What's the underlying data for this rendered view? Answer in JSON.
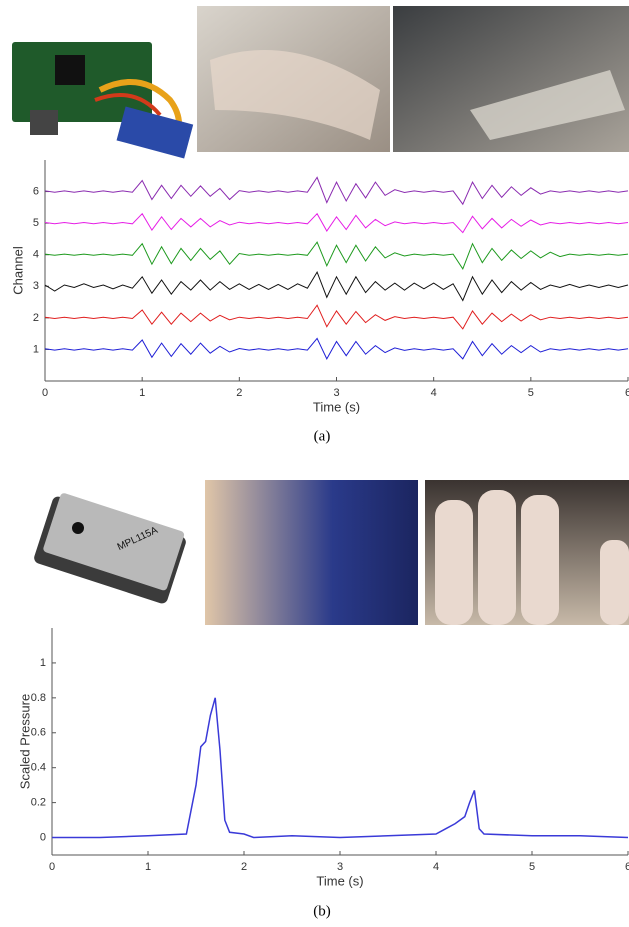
{
  "chart_data": [
    {
      "type": "line",
      "x_label": "Time (s)",
      "y_label": "Channel",
      "x": [
        0,
        0.1,
        0.2,
        0.3,
        0.4,
        0.5,
        0.6,
        0.7,
        0.8,
        0.9,
        1,
        1.1,
        1.2,
        1.3,
        1.4,
        1.5,
        1.6,
        1.7,
        1.8,
        1.9,
        2,
        2.1,
        2.2,
        2.3,
        2.4,
        2.5,
        2.6,
        2.7,
        2.8,
        2.9,
        3,
        3.1,
        3.2,
        3.3,
        3.4,
        3.5,
        3.6,
        3.7,
        3.8,
        3.9,
        4,
        4.1,
        4.2,
        4.3,
        4.4,
        4.5,
        4.6,
        4.7,
        4.8,
        4.9,
        5,
        5.1,
        5.2,
        5.3,
        5.4,
        5.5,
        5.6,
        5.7,
        5.8,
        5.9,
        6
      ],
      "series": [
        {
          "color": "#1f1fd6",
          "values": [
            0.02,
            0.02,
            0.02,
            0.02,
            0.02,
            0.02,
            0.02,
            0.02,
            0.02,
            0.02,
            0.3,
            0.25,
            0.2,
            0.22,
            0.18,
            0.15,
            0.2,
            0.12,
            0.1,
            0.08,
            0.03,
            0.02,
            0.02,
            0.02,
            0.02,
            0.02,
            0.02,
            0.02,
            0.35,
            0.3,
            0.25,
            0.2,
            0.25,
            0.15,
            0.12,
            0.1,
            0.05,
            0.03,
            0.02,
            0.02,
            0.02,
            0.02,
            0.02,
            0.3,
            0.25,
            0.2,
            0.18,
            0.15,
            0.12,
            0.1,
            0.12,
            0.08,
            0.02,
            0.02,
            0.02,
            0.02,
            0.02,
            0.02,
            0.02,
            0.02,
            0.02
          ]
        },
        {
          "color": "#e01e1e",
          "values": [
            0.02,
            0.02,
            0.02,
            0.02,
            0.02,
            0.02,
            0.02,
            0.02,
            0.02,
            0.02,
            0.25,
            0.2,
            0.18,
            0.2,
            0.15,
            0.12,
            0.15,
            0.1,
            0.08,
            0.06,
            0.02,
            0.02,
            0.02,
            0.02,
            0.02,
            0.02,
            0.02,
            0.02,
            0.4,
            0.28,
            0.22,
            0.2,
            0.2,
            0.15,
            0.1,
            0.08,
            0.04,
            0.02,
            0.02,
            0.02,
            0.02,
            0.02,
            0.02,
            0.35,
            0.22,
            0.2,
            0.15,
            0.12,
            0.12,
            0.1,
            0.1,
            0.06,
            0.02,
            0.02,
            0.02,
            0.02,
            0.02,
            0.02,
            0.02,
            0.02,
            0.02
          ]
        },
        {
          "color": "#111111",
          "values": [
            0.04,
            0.15,
            0.04,
            0.04,
            0.08,
            0.04,
            0.04,
            0.08,
            0.04,
            0.06,
            0.3,
            0.22,
            0.2,
            0.25,
            0.15,
            0.12,
            0.2,
            0.12,
            0.15,
            0.1,
            0.08,
            0.1,
            0.06,
            0.1,
            0.06,
            0.1,
            0.08,
            0.06,
            0.45,
            0.35,
            0.3,
            0.25,
            0.3,
            0.2,
            0.15,
            0.12,
            0.1,
            0.12,
            0.1,
            0.08,
            0.1,
            0.1,
            0.08,
            0.45,
            0.3,
            0.25,
            0.2,
            0.2,
            0.15,
            0.12,
            0.12,
            0.1,
            0.04,
            0.04,
            0.06,
            0.04,
            0.04,
            0.04,
            0.04,
            0.04,
            0.04
          ]
        },
        {
          "color": "#1e9a1e",
          "values": [
            0.02,
            0.02,
            0.02,
            0.02,
            0.02,
            0.02,
            0.02,
            0.02,
            0.02,
            0.02,
            0.35,
            0.3,
            0.25,
            0.28,
            0.2,
            0.18,
            0.2,
            0.15,
            0.12,
            0.3,
            0.04,
            0.02,
            0.02,
            0.02,
            0.02,
            0.02,
            0.02,
            0.02,
            0.4,
            0.35,
            0.3,
            0.25,
            0.3,
            0.2,
            0.25,
            0.1,
            0.06,
            0.04,
            0.02,
            0.02,
            0.02,
            0.02,
            0.02,
            0.45,
            0.35,
            0.25,
            0.2,
            0.18,
            0.15,
            0.12,
            0.12,
            0.1,
            0.08,
            0.06,
            0.02,
            0.02,
            0.02,
            0.02,
            0.02,
            0.02,
            0.02
          ]
        },
        {
          "color": "#e61ee6",
          "values": [
            0.02,
            0.02,
            0.02,
            0.02,
            0.02,
            0.02,
            0.02,
            0.02,
            0.02,
            0.02,
            0.3,
            0.22,
            0.2,
            0.2,
            0.15,
            0.12,
            0.15,
            0.12,
            0.08,
            0.06,
            0.03,
            0.02,
            0.02,
            0.02,
            0.02,
            0.02,
            0.02,
            0.02,
            0.3,
            0.25,
            0.2,
            0.2,
            0.25,
            0.15,
            0.12,
            0.08,
            0.04,
            0.02,
            0.02,
            0.02,
            0.02,
            0.02,
            0.02,
            0.3,
            0.22,
            0.18,
            0.15,
            0.15,
            0.12,
            0.1,
            0.1,
            0.06,
            0.02,
            0.02,
            0.02,
            0.02,
            0.02,
            0.02,
            0.02,
            0.02,
            0.02
          ]
        },
        {
          "color": "#8a2bb0",
          "values": [
            0.02,
            0.02,
            0.02,
            0.02,
            0.02,
            0.02,
            0.02,
            0.02,
            0.02,
            0.02,
            0.35,
            0.25,
            0.2,
            0.22,
            0.2,
            0.15,
            0.18,
            0.15,
            0.1,
            0.25,
            0.03,
            0.02,
            0.02,
            0.02,
            0.02,
            0.02,
            0.02,
            0.02,
            0.45,
            0.35,
            0.3,
            0.3,
            0.25,
            0.2,
            0.3,
            0.12,
            0.06,
            0.03,
            0.02,
            0.02,
            0.02,
            0.02,
            0.02,
            0.4,
            0.3,
            0.22,
            0.2,
            0.18,
            0.15,
            0.12,
            0.12,
            0.08,
            0.02,
            0.02,
            0.02,
            0.02,
            0.02,
            0.02,
            0.02,
            0.02,
            0.02
          ]
        }
      ],
      "xlim": [
        0,
        6
      ],
      "ylim": [
        0,
        7
      ],
      "xticks": [
        0,
        1,
        2,
        3,
        4,
        5,
        6
      ],
      "yticks": [
        1,
        2,
        3,
        4,
        5,
        6
      ]
    },
    {
      "type": "line",
      "x_label": "Time (s)",
      "y_label": "Scaled Pressure",
      "x": [
        0,
        0.5,
        1,
        1.4,
        1.5,
        1.55,
        1.6,
        1.65,
        1.7,
        1.75,
        1.8,
        1.85,
        2,
        2.1,
        2.5,
        3,
        3.5,
        4,
        4.1,
        4.2,
        4.3,
        4.35,
        4.4,
        4.45,
        4.5,
        5,
        5.5,
        6
      ],
      "series": [
        {
          "color": "#3a3ad8",
          "values": [
            0,
            0,
            0.01,
            0.02,
            0.3,
            0.52,
            0.55,
            0.7,
            0.8,
            0.5,
            0.1,
            0.03,
            0.02,
            0,
            0.01,
            0,
            0.01,
            0.02,
            0.05,
            0.08,
            0.12,
            0.2,
            0.27,
            0.05,
            0.02,
            0.01,
            0.01,
            0
          ]
        }
      ],
      "xlim": [
        0,
        6
      ],
      "ylim": [
        -0.1,
        1.2
      ],
      "xticks": [
        0,
        1,
        2,
        3,
        4,
        5,
        6
      ],
      "yticks": [
        0,
        0.2,
        0.4,
        0.6,
        0.8,
        1
      ]
    }
  ],
  "captions": [
    "(a)",
    "(b)"
  ],
  "chip_marking": "MPL115A"
}
